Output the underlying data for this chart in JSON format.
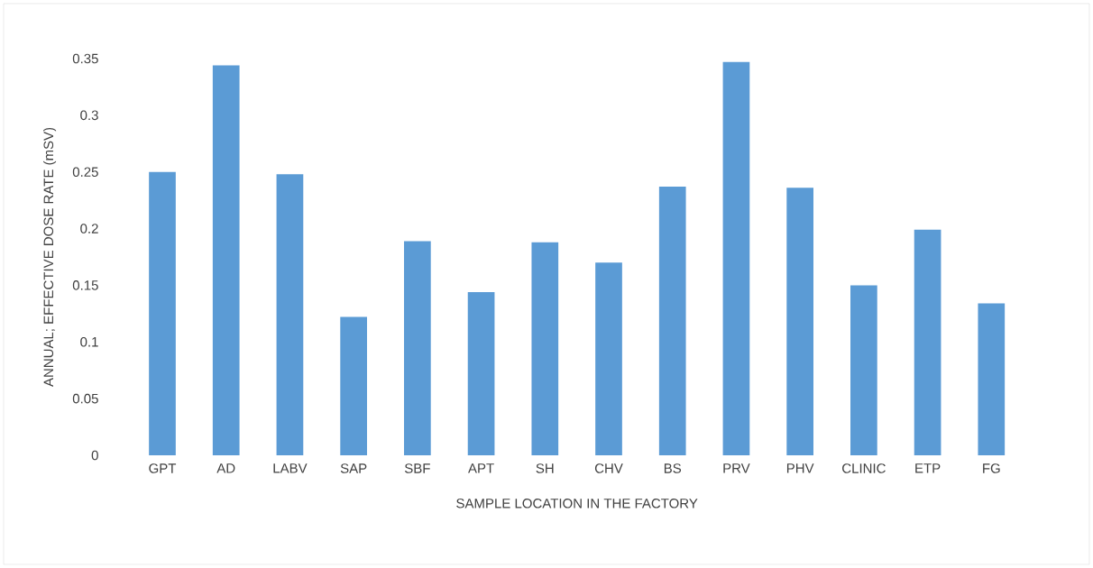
{
  "chart_data": {
    "type": "bar",
    "xlabel": "SAMPLE LOCATION IN THE FACTORY",
    "ylabel": "ANNUAL; EFFECTIVE DOSE RATE (mSV)",
    "categories": [
      "GPT",
      "AD",
      "LABV",
      "SAP",
      "SBF",
      "APT",
      "SH",
      "CHV",
      "BS",
      "PRV",
      "PHV",
      "CLINIC",
      "ETP",
      "FG"
    ],
    "values": [
      0.25,
      0.344,
      0.248,
      0.122,
      0.189,
      0.144,
      0.188,
      0.17,
      0.237,
      0.347,
      0.236,
      0.15,
      0.199,
      0.134
    ],
    "color": "#5b9bd5",
    "ylim": [
      0,
      0.35
    ],
    "yticks": [
      0,
      0.05,
      0.1,
      0.15,
      0.2,
      0.25,
      0.3,
      0.35
    ],
    "grid": false
  }
}
